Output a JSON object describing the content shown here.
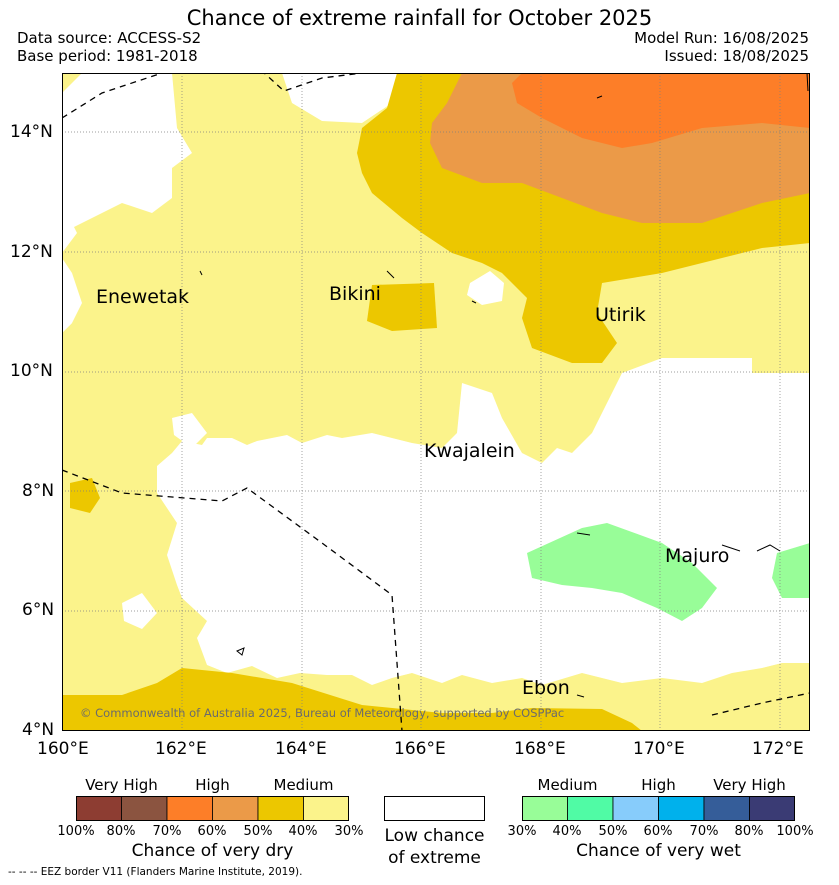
{
  "title": "Chance of extreme rainfall for October 2025",
  "meta": {
    "data_source": "Data source: ACCESS-S2",
    "base_period": "Base period: 1981-2018",
    "model_run": "Model Run: 16/08/2025",
    "issued": "Issued: 18/08/2025"
  },
  "map": {
    "lon_range": [
      160,
      172.5
    ],
    "lat_range": [
      4,
      15
    ],
    "x_ticks": [
      "160°E",
      "162°E",
      "164°E",
      "166°E",
      "168°E",
      "170°E",
      "172°E"
    ],
    "y_ticks": [
      "4°N",
      "6°N",
      "8°N",
      "10°N",
      "12°N",
      "14°N"
    ],
    "places": [
      "Enewetak",
      "Bikini",
      "Utirik",
      "Kwajalein",
      "Majuro",
      "Ebon"
    ],
    "copyright": "© Commonwealth of Australia 2025, Bureau of Meteorology, supported by COSPPac",
    "colors": {
      "dry_medium_light": "#fbf38b",
      "dry_medium_dark": "#ecc700",
      "dry_high_light": "#eb9a48",
      "dry_high_dark": "#fd7e28",
      "wet_medium": "#98fd98",
      "low_chance": "#ffffff",
      "eez_line": "#000000"
    }
  },
  "legend": {
    "dry": {
      "headers": [
        "Very High",
        "High",
        "Medium"
      ],
      "colors": [
        "#8d3d32",
        "#8b5440",
        "#fd7e28",
        "#eb9a48",
        "#ecc700",
        "#fbf38b"
      ],
      "ticks": [
        "100%",
        "80%",
        "70%",
        "60%",
        "50%",
        "40%",
        "30%"
      ],
      "caption": "Chance of very dry"
    },
    "low": {
      "color": "#ffffff",
      "caption_line1": "Low chance",
      "caption_line2": "of extreme"
    },
    "wet": {
      "headers": [
        "Medium",
        "High",
        "Very High"
      ],
      "colors": [
        "#98fd98",
        "#50fba5",
        "#87ccfb",
        "#00b1ec",
        "#355d99",
        "#3a3b74"
      ],
      "ticks": [
        "30%",
        "40%",
        "50%",
        "60%",
        "70%",
        "80%",
        "100%"
      ],
      "caption": "Chance of very wet"
    }
  },
  "eez_note": "--  --  -- EEZ border V11 (Flanders Marine Institute, 2019)."
}
